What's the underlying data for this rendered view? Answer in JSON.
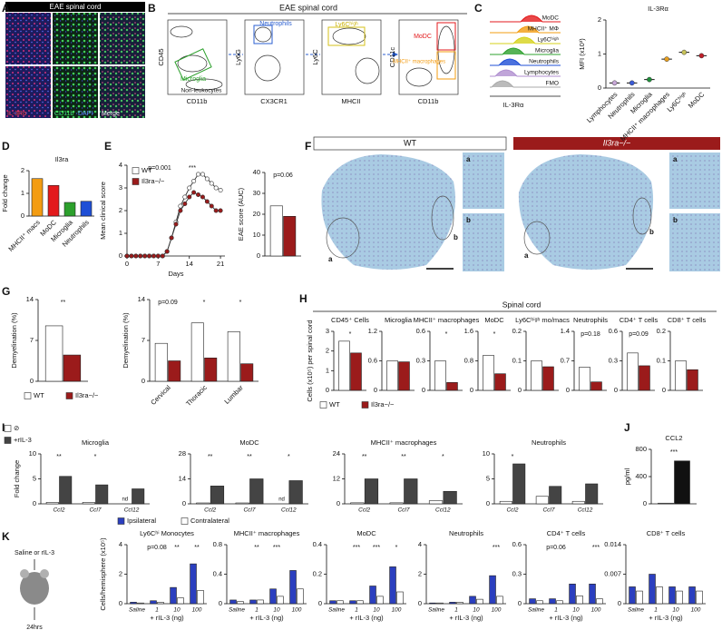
{
  "figure": {
    "panels": [
      "A",
      "B",
      "C",
      "D",
      "E",
      "F",
      "G",
      "H",
      "I",
      "J",
      "K"
    ],
    "A": {
      "title": "EAE spinal cord",
      "markers": [
        "IL-3Rα",
        "CD11b",
        "DAPI",
        "Merge"
      ]
    },
    "B": {
      "title": "EAE spinal cord",
      "axes": [
        "CD45",
        "CD11b",
        "Ly6G",
        "CX3CR1",
        "Ly6C",
        "MHCII",
        "CD11c",
        "CD11b"
      ],
      "gates": [
        "Microglia",
        "Non-leukocytes",
        "Neutrophils",
        "Ly6Cʰⁱᵍʰ",
        "MoDC",
        "MHCII⁺ macrophages"
      ]
    },
    "C": {
      "populations": [
        "MoDC",
        "MHCII⁺ MΦ",
        "Ly6Cʰⁱᵍʰ",
        "Microglia",
        "Neutrophils",
        "Lymphocytes",
        "FMO"
      ],
      "xlabel": "IL-3Rα"
    },
    "F": {
      "groups": [
        "WT",
        "Il3ra−/−"
      ],
      "insets": [
        "a",
        "b",
        "a",
        "b",
        "a",
        "b",
        "a",
        "b"
      ]
    },
    "H": {
      "header": "Spinal cord"
    },
    "K": {
      "treatment": "Saline or rIL-3",
      "time": "24hrs"
    }
  },
  "chart_data": [
    {
      "type": "mean",
      "title": "IL-3Rα",
      "ylabel": "MFI (x10³)",
      "categories": [
        "Lymphocytes",
        "Neutrophils",
        "Microglia",
        "MHCII⁺ macrophages",
        "Ly6Cʰⁱᵍʰ",
        "MoDC"
      ],
      "series": [
        {
          "values": [
            0.15,
            0.15,
            0.25,
            0.85,
            1.05,
            0.95
          ],
          "colors": [
            "#c9a8d8",
            "#3b5bd6",
            "#1f8f3a",
            "#e8a020",
            "#c8c35a",
            "#c0202a"
          ]
        }
      ],
      "ylim": [
        0,
        2
      ],
      "yticks": [
        0,
        1,
        2
      ],
      "rotate_labels": true
    },
    {
      "type": "bar",
      "title": "Il3ra",
      "ylabel": "Fold change",
      "categories": [
        "MHCII⁺ macs",
        "MoDC",
        "Microglia",
        "Neutrophils"
      ],
      "series": [
        {
          "values": [
            1.65,
            1.35,
            0.6,
            0.65
          ],
          "colors": [
            "#f39c12",
            "#e31a1c",
            "#2ca02c",
            "#1f4fd6"
          ]
        }
      ],
      "ylim": [
        0,
        2
      ],
      "yticks": [
        0,
        1,
        2
      ],
      "rotate_labels": true
    },
    {
      "type": "line",
      "xlabel": "Days",
      "ylabel": "Mean clinical score",
      "x": [
        0,
        1,
        2,
        3,
        4,
        5,
        6,
        7,
        8,
        9,
        10,
        11,
        12,
        13,
        14,
        15,
        16,
        17,
        18,
        19,
        20,
        21
      ],
      "series": [
        {
          "name": "WT",
          "color": "#ffffff",
          "values": [
            0,
            0,
            0,
            0,
            0,
            0,
            0,
            0,
            0,
            0.2,
            0.8,
            1.5,
            2.2,
            2.6,
            3.0,
            3.3,
            3.6,
            3.6,
            3.4,
            3.2,
            3.0,
            2.9
          ]
        },
        {
          "name": "Il3ra−/−",
          "color": "#9b1b1b",
          "values": [
            0,
            0,
            0,
            0,
            0,
            0,
            0,
            0,
            0,
            0.2,
            0.8,
            1.4,
            2.0,
            2.3,
            2.6,
            2.8,
            2.7,
            2.6,
            2.4,
            2.2,
            2.0,
            2.0
          ]
        }
      ],
      "xlim": [
        0,
        22
      ],
      "xticks": [
        0,
        7,
        14,
        21
      ],
      "ylim": [
        0,
        4
      ],
      "yticks": [
        0,
        1,
        2,
        3,
        4
      ],
      "legend": "top-left",
      "annotations": [
        "p=0.001",
        "***"
      ]
    },
    {
      "type": "bar",
      "ylabel": "EAE score (AUC)",
      "categories": [
        null
      ],
      "series": [
        {
          "color": "#ffffff",
          "values": [
            24
          ]
        },
        {
          "color": "#9b1b1b",
          "values": [
            19
          ]
        }
      ],
      "ylim": [
        0,
        40
      ],
      "yticks": [
        0,
        10,
        20,
        30,
        40
      ],
      "annotations": [
        "p=0.06"
      ]
    },
    {
      "type": "bar",
      "ylabel": "Demyelination (%)",
      "categories": [
        null
      ],
      "series": [
        {
          "name": "WT",
          "color": "#ffffff",
          "values": [
            9.5
          ]
        },
        {
          "name": "Il3ra−/−",
          "color": "#9b1b1b",
          "values": [
            4.5
          ]
        }
      ],
      "ylim": [
        0,
        14
      ],
      "yticks": [
        0,
        7,
        14
      ],
      "annotations": [
        "**"
      ],
      "legend": "bottom-left"
    },
    {
      "type": "bar",
      "ylabel": "Demyelination (%)",
      "categories": [
        "Cervical",
        "Thoracic",
        "Lumbar"
      ],
      "series": [
        {
          "color": "#ffffff",
          "values": [
            6.5,
            10,
            8.5
          ]
        },
        {
          "color": "#9b1b1b",
          "values": [
            3.5,
            4,
            3
          ]
        }
      ],
      "ylim": [
        0,
        14
      ],
      "yticks": [
        0,
        7,
        14
      ],
      "annotations": [
        "p=0.09",
        "*",
        "*"
      ],
      "rotate_labels": true
    },
    {
      "type": "bar",
      "title": "CD45⁺ Cells",
      "ylabel": "Cells (x10⁵) per spinal cord",
      "categories": [
        null
      ],
      "series": [
        {
          "name": "WT",
          "color": "#ffffff",
          "values": [
            2.5
          ]
        },
        {
          "name": "Il3ra−/−",
          "color": "#9b1b1b",
          "values": [
            1.9
          ]
        }
      ],
      "ylim": [
        0,
        3
      ],
      "yticks": [
        0,
        1,
        2,
        3
      ],
      "annotations": [
        "*"
      ],
      "legend": "bottom-left"
    },
    {
      "type": "bar",
      "title": "Microglia",
      "categories": [
        null
      ],
      "series": [
        {
          "color": "#ffffff",
          "values": [
            0.6
          ]
        },
        {
          "color": "#9b1b1b",
          "values": [
            0.58
          ]
        }
      ],
      "ylim": [
        0,
        1.2
      ],
      "yticks": [
        0,
        0.6,
        1.2
      ]
    },
    {
      "type": "bar",
      "title": "MHCII⁺ macrophages",
      "categories": [
        null
      ],
      "series": [
        {
          "color": "#ffffff",
          "values": [
            0.3
          ]
        },
        {
          "color": "#9b1b1b",
          "values": [
            0.08
          ]
        }
      ],
      "ylim": [
        0,
        0.6
      ],
      "yticks": [
        0,
        0.3,
        0.6
      ],
      "annotations": [
        "*"
      ]
    },
    {
      "type": "bar",
      "title": "MoDC",
      "categories": [
        null
      ],
      "series": [
        {
          "color": "#ffffff",
          "values": [
            0.95
          ]
        },
        {
          "color": "#9b1b1b",
          "values": [
            0.45
          ]
        }
      ],
      "ylim": [
        0,
        1.6
      ],
      "yticks": [
        0,
        0.8,
        1.6
      ],
      "annotations": [
        "*"
      ]
    },
    {
      "type": "bar",
      "title": "Ly6Cʰⁱᵍʰ mo/macs",
      "categories": [
        null
      ],
      "series": [
        {
          "color": "#ffffff",
          "values": [
            0.1
          ]
        },
        {
          "color": "#9b1b1b",
          "values": [
            0.08
          ]
        }
      ],
      "ylim": [
        0,
        0.2
      ],
      "yticks": [
        0,
        0.1,
        0.2
      ]
    },
    {
      "type": "bar",
      "title": "Neutrophils",
      "categories": [
        null
      ],
      "series": [
        {
          "color": "#ffffff",
          "values": [
            0.55
          ]
        },
        {
          "color": "#9b1b1b",
          "values": [
            0.2
          ]
        }
      ],
      "ylim": [
        0,
        1.4
      ],
      "yticks": [
        0,
        0.7,
        1.4
      ],
      "annotations": [
        "p=0.18"
      ]
    },
    {
      "type": "bar",
      "title": "CD4⁺ T cells",
      "categories": [
        null
      ],
      "series": [
        {
          "color": "#ffffff",
          "values": [
            0.38
          ]
        },
        {
          "color": "#9b1b1b",
          "values": [
            0.25
          ]
        }
      ],
      "ylim": [
        0,
        0.6
      ],
      "yticks": [
        0,
        0.3,
        0.6
      ],
      "annotations": [
        "p=0.09"
      ]
    },
    {
      "type": "bar",
      "title": "CD8⁺ T cells",
      "categories": [
        null
      ],
      "series": [
        {
          "color": "#ffffff",
          "values": [
            0.1
          ]
        },
        {
          "color": "#9b1b1b",
          "values": [
            0.07
          ]
        }
      ],
      "ylim": [
        0,
        0.2
      ],
      "yticks": [
        0,
        0.1,
        0.2
      ]
    },
    {
      "type": "bar",
      "title": "Microglia",
      "ylabel": "Fold change",
      "categories": [
        "Ccl2",
        "Ccl7",
        "Ccl12"
      ],
      "series": [
        {
          "name": "⊘",
          "color": "#ffffff",
          "values": [
            0.3,
            0.3,
            null
          ],
          "value_labels": [
            null,
            null,
            "nd"
          ]
        },
        {
          "name": "+rIL-3",
          "color": "#444444",
          "values": [
            5.5,
            3.8,
            3
          ]
        }
      ],
      "ylim": [
        0,
        10
      ],
      "yticks": [
        0,
        5,
        10
      ],
      "annotations": [
        "**",
        "*",
        null
      ],
      "legend": "upper-left"
    },
    {
      "type": "bar",
      "title": "MoDC",
      "categories": [
        "Ccl2",
        "Ccl7",
        "Ccl12"
      ],
      "series": [
        {
          "color": "#ffffff",
          "values": [
            0.5,
            0.5,
            null
          ],
          "value_labels": [
            null,
            null,
            "nd"
          ]
        },
        {
          "color": "#444444",
          "values": [
            10,
            14,
            13
          ]
        }
      ],
      "ylim": [
        0,
        28
      ],
      "yticks": [
        0,
        14,
        28
      ],
      "annotations": [
        "**",
        "**",
        "*"
      ]
    },
    {
      "type": "bar",
      "title": "MHCII⁺ macrophages",
      "categories": [
        "Ccl2",
        "Ccl7",
        "Ccl12"
      ],
      "series": [
        {
          "color": "#ffffff",
          "values": [
            0.5,
            0.5,
            1.5
          ]
        },
        {
          "color": "#444444",
          "values": [
            12,
            12,
            6
          ]
        }
      ],
      "ylim": [
        0,
        24
      ],
      "yticks": [
        0,
        12,
        24
      ],
      "annotations": [
        "**",
        "**",
        "*"
      ]
    },
    {
      "type": "bar",
      "title": "Neutrophils",
      "categories": [
        "Ccl2",
        "Ccl7",
        "Ccl12"
      ],
      "series": [
        {
          "color": "#ffffff",
          "values": [
            0.5,
            1.5,
            0.5
          ]
        },
        {
          "color": "#444444",
          "values": [
            8,
            3.5,
            4
          ]
        }
      ],
      "ylim": [
        0,
        10
      ],
      "yticks": [
        0,
        5,
        10
      ],
      "annotations": [
        "*",
        null,
        null
      ]
    },
    {
      "type": "bar",
      "title": "CCL2",
      "ylabel": "pg/ml",
      "categories": [
        null
      ],
      "series": [
        {
          "color": "#ffffff",
          "values": [
            10
          ]
        },
        {
          "color": "#111111",
          "values": [
            630
          ]
        }
      ],
      "ylim": [
        0,
        800
      ],
      "yticks": [
        0,
        400,
        800
      ],
      "annotations": [
        "***"
      ]
    },
    {
      "type": "bar",
      "title": "Ly6Cʰⁱ Monocytes",
      "ylabel": "Cells/hemisphere (x10⁵)",
      "xlabel": "+ rIL-3 (ng)",
      "categories": [
        "Saline",
        "1",
        "10",
        "100"
      ],
      "series": [
        {
          "name": "Ipsilateral",
          "color": "#2b3fbf",
          "values": [
            0.1,
            0.2,
            1.1,
            2.7
          ]
        },
        {
          "name": "Contralateral",
          "color": "#ffffff",
          "values": [
            0.05,
            0.1,
            0.4,
            0.9
          ]
        }
      ],
      "ylim": [
        0,
        4
      ],
      "yticks": [
        0,
        2,
        4
      ],
      "annotations": [
        null,
        "p=0.08",
        "**",
        "**"
      ],
      "legend": "above"
    },
    {
      "type": "bar",
      "title": "MHCII⁺ macrophages",
      "xlabel": "+ rIL-3 (ng)",
      "categories": [
        "Saline",
        "1",
        "10",
        "100"
      ],
      "series": [
        {
          "color": "#2b3fbf",
          "values": [
            0.05,
            0.05,
            0.2,
            0.45
          ]
        },
        {
          "color": "#ffffff",
          "values": [
            0.03,
            0.05,
            0.1,
            0.2
          ]
        }
      ],
      "ylim": [
        0,
        0.8
      ],
      "yticks": [
        0,
        0.4,
        0.8
      ],
      "annotations": [
        null,
        "**",
        "***",
        null
      ]
    },
    {
      "type": "bar",
      "title": "MoDC",
      "xlabel": "+ rIL-3 (ng)",
      "categories": [
        "Saline",
        "1",
        "10",
        "100"
      ],
      "series": [
        {
          "color": "#2b3fbf",
          "values": [
            0.02,
            0.02,
            0.12,
            0.25
          ]
        },
        {
          "color": "#ffffff",
          "values": [
            0.02,
            0.02,
            0.05,
            0.08
          ]
        }
      ],
      "ylim": [
        0,
        0.4
      ],
      "yticks": [
        0,
        0.2,
        0.4
      ],
      "annotations": [
        null,
        "***",
        "***",
        "*"
      ]
    },
    {
      "type": "bar",
      "title": "Neutrophils",
      "xlabel": "+ rIL-3 (ng)",
      "categories": [
        "Saline",
        "1",
        "10",
        "100"
      ],
      "series": [
        {
          "color": "#2b3fbf",
          "values": [
            0.05,
            0.1,
            0.5,
            1.9
          ]
        },
        {
          "color": "#ffffff",
          "values": [
            0.05,
            0.1,
            0.3,
            0.5
          ]
        }
      ],
      "ylim": [
        0,
        4
      ],
      "yticks": [
        0,
        2,
        4
      ],
      "annotations": [
        null,
        null,
        null,
        "***"
      ]
    },
    {
      "type": "bar",
      "title": "CD4⁺ T cells",
      "xlabel": "+ rIL-3 (ng)",
      "categories": [
        "Saline",
        "1",
        "10",
        "100"
      ],
      "series": [
        {
          "color": "#2b3fbf",
          "values": [
            0.05,
            0.05,
            0.2,
            0.2
          ]
        },
        {
          "color": "#ffffff",
          "values": [
            0.03,
            0.03,
            0.08,
            0.05
          ]
        }
      ],
      "ylim": [
        0,
        0.6
      ],
      "yticks": [
        0,
        0.3,
        0.6
      ],
      "annotations": [
        null,
        "p=0.06",
        null,
        "***"
      ]
    },
    {
      "type": "bar",
      "title": "CD8⁺ T cells",
      "xlabel": "+ rIL-3 (ng)",
      "categories": [
        "Saline",
        "1",
        "10",
        "100"
      ],
      "series": [
        {
          "color": "#2b3fbf",
          "values": [
            0.004,
            0.007,
            0.004,
            0.004
          ]
        },
        {
          "color": "#ffffff",
          "values": [
            0.003,
            0.004,
            0.003,
            0.003
          ]
        }
      ],
      "ylim": [
        0,
        0.014
      ],
      "yticks": [
        0,
        0.007,
        0.014
      ]
    }
  ]
}
